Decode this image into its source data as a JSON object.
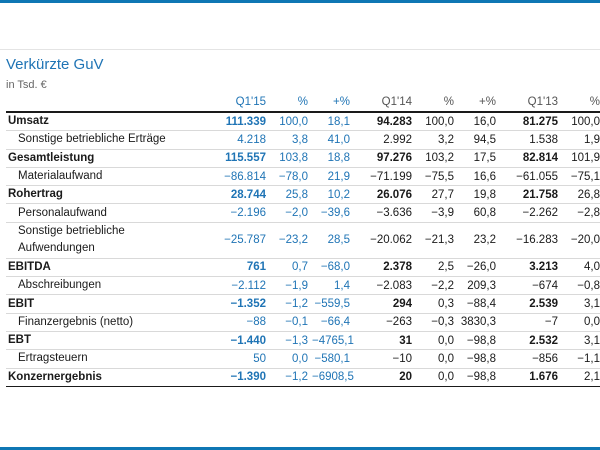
{
  "title": "Verkürzte GuV",
  "subtitle": "in Tsd. €",
  "colors": {
    "accent": "#1f74b5",
    "text": "#1a1a1a"
  },
  "columns": [
    "Q1'15",
    "%",
    "+%",
    "Q1'14",
    "%",
    "+%",
    "Q1'13",
    "%"
  ],
  "rows": [
    {
      "label": "Umsatz",
      "bold": true,
      "indent": false,
      "cells": [
        "111.339",
        "100,0",
        "18,1",
        "94.283",
        "100,0",
        "16,0",
        "81.275",
        "100,0"
      ]
    },
    {
      "label": "Sonstige betriebliche Erträge",
      "bold": false,
      "indent": true,
      "cells": [
        "4.218",
        "3,8",
        "41,0",
        "2.992",
        "3,2",
        "94,5",
        "1.538",
        "1,9"
      ]
    },
    {
      "label": "Gesamtleistung",
      "bold": true,
      "indent": false,
      "cells": [
        "115.557",
        "103,8",
        "18,8",
        "97.276",
        "103,2",
        "17,5",
        "82.814",
        "101,9"
      ]
    },
    {
      "label": "Materialaufwand",
      "bold": false,
      "indent": true,
      "cells": [
        "−86.814",
        "−78,0",
        "21,9",
        "−71.199",
        "−75,5",
        "16,6",
        "−61.055",
        "−75,1"
      ]
    },
    {
      "label": "Rohertrag",
      "bold": true,
      "indent": false,
      "cells": [
        "28.744",
        "25,8",
        "10,2",
        "26.076",
        "27,7",
        "19,8",
        "21.758",
        "26,8"
      ]
    },
    {
      "label": "Personalaufwand",
      "bold": false,
      "indent": true,
      "cells": [
        "−2.196",
        "−2,0",
        "−39,6",
        "−3.636",
        "−3,9",
        "60,8",
        "−2.262",
        "−2,8"
      ]
    },
    {
      "label": "Sonstige betriebliche Aufwendungen",
      "bold": false,
      "indent": true,
      "two": true,
      "cells": [
        "−25.787",
        "−23,2",
        "28,5",
        "−20.062",
        "−21,3",
        "23,2",
        "−16.283",
        "−20,0"
      ]
    },
    {
      "label": "EBITDA",
      "bold": true,
      "indent": false,
      "cells": [
        "761",
        "0,7",
        "−68,0",
        "2.378",
        "2,5",
        "−26,0",
        "3.213",
        "4,0"
      ]
    },
    {
      "label": "Abschreibungen",
      "bold": false,
      "indent": true,
      "cells": [
        "−2.112",
        "−1,9",
        "1,4",
        "−2.083",
        "−2,2",
        "209,3",
        "−674",
        "−0,8"
      ]
    },
    {
      "label": "EBIT",
      "bold": true,
      "indent": false,
      "cells": [
        "−1.352",
        "−1,2",
        "−559,5",
        "294",
        "0,3",
        "−88,4",
        "2.539",
        "3,1"
      ]
    },
    {
      "label": "Finanzergebnis (netto)",
      "bold": false,
      "indent": true,
      "cells": [
        "−88",
        "−0,1",
        "−66,4",
        "−263",
        "−0,3",
        "3830,3",
        "−7",
        "0,0"
      ]
    },
    {
      "label": "EBT",
      "bold": true,
      "indent": false,
      "cells": [
        "−1.440",
        "−1,3",
        "−4765,1",
        "31",
        "0,0",
        "−98,8",
        "2.532",
        "3,1"
      ]
    },
    {
      "label": "Ertragsteuern",
      "bold": false,
      "indent": true,
      "cells": [
        "50",
        "0,0",
        "−580,1",
        "−10",
        "0,0",
        "−98,8",
        "−856",
        "−1,1"
      ]
    },
    {
      "label": "Konzernergebnis",
      "bold": true,
      "indent": false,
      "cells": [
        "−1.390",
        "−1,2",
        "−6908,5",
        "20",
        "0,0",
        "−98,8",
        "1.676",
        "2,1"
      ]
    }
  ]
}
